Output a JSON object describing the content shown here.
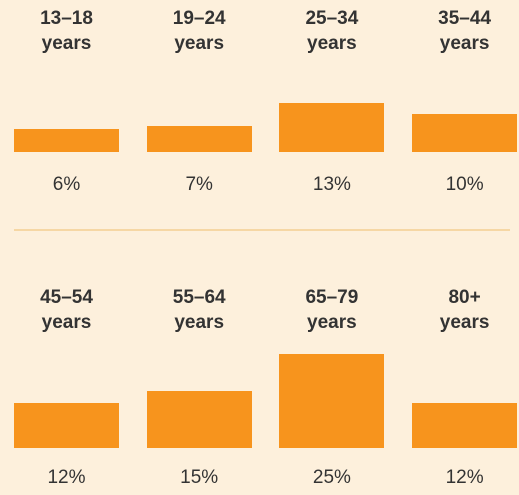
{
  "chart_data": {
    "type": "bar",
    "categories": [
      "13–18 years",
      "19–24 years",
      "25–34 years",
      "35–44 years",
      "45–54 years",
      "55–64 years",
      "65–79 years",
      "80+ years"
    ],
    "values": [
      6,
      7,
      13,
      10,
      12,
      15,
      25,
      12
    ],
    "value_labels": [
      "6%",
      "7%",
      "13%",
      "10%",
      "12%",
      "15%",
      "25%",
      "12%"
    ],
    "color": "#f7941d"
  }
}
